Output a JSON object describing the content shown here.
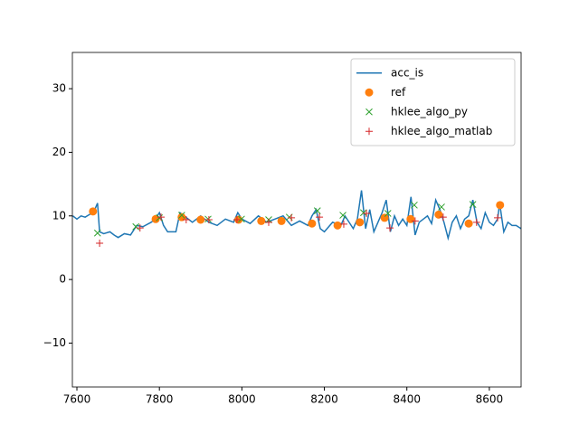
{
  "chart_data": {
    "type": "line",
    "xlim": [
      7589,
      8677
    ],
    "xticks": [
      7600,
      7800,
      8000,
      8200,
      8400,
      8600
    ],
    "ylim": [
      -16.9,
      35.7
    ],
    "yticks": [
      {
        "value": -10,
        "label": "−10"
      },
      0,
      10,
      20,
      30
    ],
    "legend": "upper right",
    "series": [
      {
        "name": "acc_is",
        "color": "#1f77b4",
        "marker": "line",
        "x": [
          7590,
          7600,
          7610,
          7620,
          7630,
          7640,
          7650,
          7655,
          7665,
          7680,
          7690,
          7700,
          7715,
          7730,
          7745,
          7760,
          7780,
          7790,
          7800,
          7810,
          7820,
          7840,
          7850,
          7860,
          7880,
          7900,
          7920,
          7940,
          7960,
          7980,
          7990,
          8000,
          8020,
          8040,
          8060,
          8080,
          8100,
          8120,
          8140,
          8160,
          8170,
          8180,
          8190,
          8200,
          8220,
          8240,
          8250,
          8270,
          8280,
          8290,
          8300,
          8310,
          8320,
          8330,
          8340,
          8350,
          8360,
          8370,
          8380,
          8390,
          8400,
          8410,
          8420,
          8430,
          8440,
          8450,
          8460,
          8470,
          8480,
          8490,
          8500,
          8510,
          8520,
          8530,
          8540,
          8550,
          8560,
          8570,
          8580,
          8590,
          8600,
          8610,
          8620,
          8625,
          8635,
          8645,
          8655,
          8665,
          8677
        ],
        "values": [
          10,
          9.5,
          10,
          9.8,
          10.2,
          10.5,
          12,
          7.5,
          7.2,
          7.5,
          7,
          6.6,
          7.2,
          7,
          8.5,
          8.3,
          9,
          9.5,
          10.5,
          8.5,
          7.5,
          7.5,
          10.5,
          10,
          9,
          10,
          9,
          8.5,
          9.5,
          9,
          10.5,
          9.5,
          8.8,
          10,
          9,
          9.5,
          10,
          8.5,
          9.2,
          8.5,
          10,
          11,
          8,
          7.5,
          9,
          8.5,
          10,
          8,
          9.5,
          14,
          8,
          11,
          7.5,
          9,
          10.5,
          12.5,
          7.5,
          10,
          8.5,
          9.5,
          8.5,
          13,
          7,
          9,
          9.5,
          10,
          8.8,
          12.5,
          11,
          9,
          6.5,
          9,
          10,
          8,
          9.5,
          10,
          12.5,
          9,
          8,
          10.5,
          9,
          8.5,
          9.5,
          12,
          7.5,
          9,
          8.5,
          8.5,
          8
        ]
      },
      {
        "name": "ref",
        "color": "#ff7f0e",
        "marker": "o",
        "x": [
          7639,
          7791,
          7854,
          7900,
          7992,
          8047,
          8096,
          8170,
          8232,
          8286,
          8346,
          8409,
          8477,
          8550,
          8626
        ],
        "values": [
          10.7,
          9.5,
          9.8,
          9.4,
          9.4,
          9.2,
          9.2,
          8.8,
          8.5,
          9.0,
          9.7,
          9.5,
          10.2,
          8.8,
          11.7
        ]
      },
      {
        "name": "hklee_algo_py",
        "color": "#2ca02c",
        "marker": "x",
        "x": [
          7650,
          7743,
          7800,
          7854,
          7918,
          7999,
          8065,
          8115,
          8183,
          8245,
          8295,
          8354,
          8418,
          8484,
          8560
        ],
        "values": [
          7.3,
          8.3,
          9.7,
          10.1,
          9.5,
          9.5,
          9.4,
          9.8,
          10.8,
          10.1,
          10.5,
          10.4,
          11.7,
          11.4,
          11.8
        ]
      },
      {
        "name": "hklee_algo_matlab",
        "color": "#d62728",
        "marker": "+",
        "x": [
          7655,
          7753,
          7804,
          7865,
          7920,
          7988,
          8065,
          8120,
          8188,
          8247,
          8302,
          8359,
          8420,
          8488,
          8569,
          8620
        ],
        "values": [
          5.7,
          8.1,
          9.8,
          9.4,
          9.4,
          9.4,
          9.0,
          9.7,
          9.8,
          8.7,
          10.4,
          8.1,
          9.2,
          9.8,
          9.0,
          9.7
        ]
      }
    ]
  }
}
